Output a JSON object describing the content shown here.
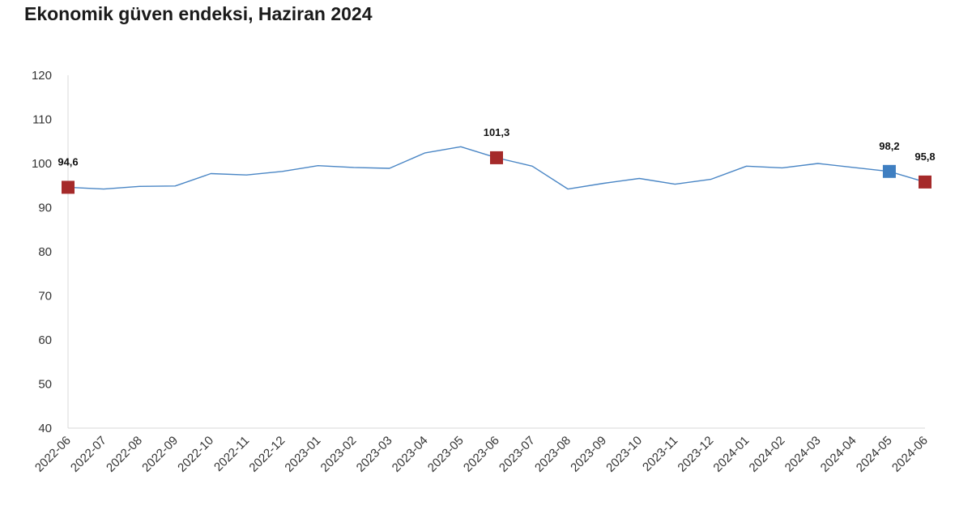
{
  "title": "Ekonomik güven endeksi, Haziran 2024",
  "colors": {
    "line": "#4a86c5",
    "marker_red": "#a52a2a",
    "marker_blue": "#3f7fc1",
    "axis": "#d9d9d9"
  },
  "chart_data": {
    "type": "line",
    "title": "Ekonomik güven endeksi, Haziran 2024",
    "xlabel": "",
    "ylabel": "",
    "ylim": [
      40,
      120
    ],
    "yticks": [
      "120",
      "110",
      "100",
      "90",
      "80",
      "70",
      "60",
      "50",
      "40"
    ],
    "grid": false,
    "categories": [
      "2022-06",
      "2022-07",
      "2022-08",
      "2022-09",
      "2022-10",
      "2022-11",
      "2022-12",
      "2023-01",
      "2023-02",
      "2023-03",
      "2023-04",
      "2023-05",
      "2023-06",
      "2023-07",
      "2023-08",
      "2023-09",
      "2023-10",
      "2023-11",
      "2023-12",
      "2024-01",
      "2024-02",
      "2024-03",
      "2024-04",
      "2024-05",
      "2024-06"
    ],
    "series": [
      {
        "values": [
          94.6,
          94.2,
          94.8,
          94.9,
          97.7,
          97.4,
          98.2,
          99.5,
          99.1,
          98.9,
          102.4,
          103.8,
          101.3,
          99.4,
          94.2,
          95.5,
          96.6,
          95.3,
          96.4,
          99.4,
          99.0,
          100.0,
          99.1,
          98.2,
          95.8
        ]
      }
    ],
    "highlights": [
      {
        "index": 0,
        "label": "94,6",
        "color": "#a52a2a"
      },
      {
        "index": 12,
        "label": "101,3",
        "color": "#a52a2a"
      },
      {
        "index": 23,
        "label": "98,2",
        "color": "#3f7fc1"
      },
      {
        "index": 24,
        "label": "95,8",
        "color": "#a52a2a"
      }
    ]
  }
}
